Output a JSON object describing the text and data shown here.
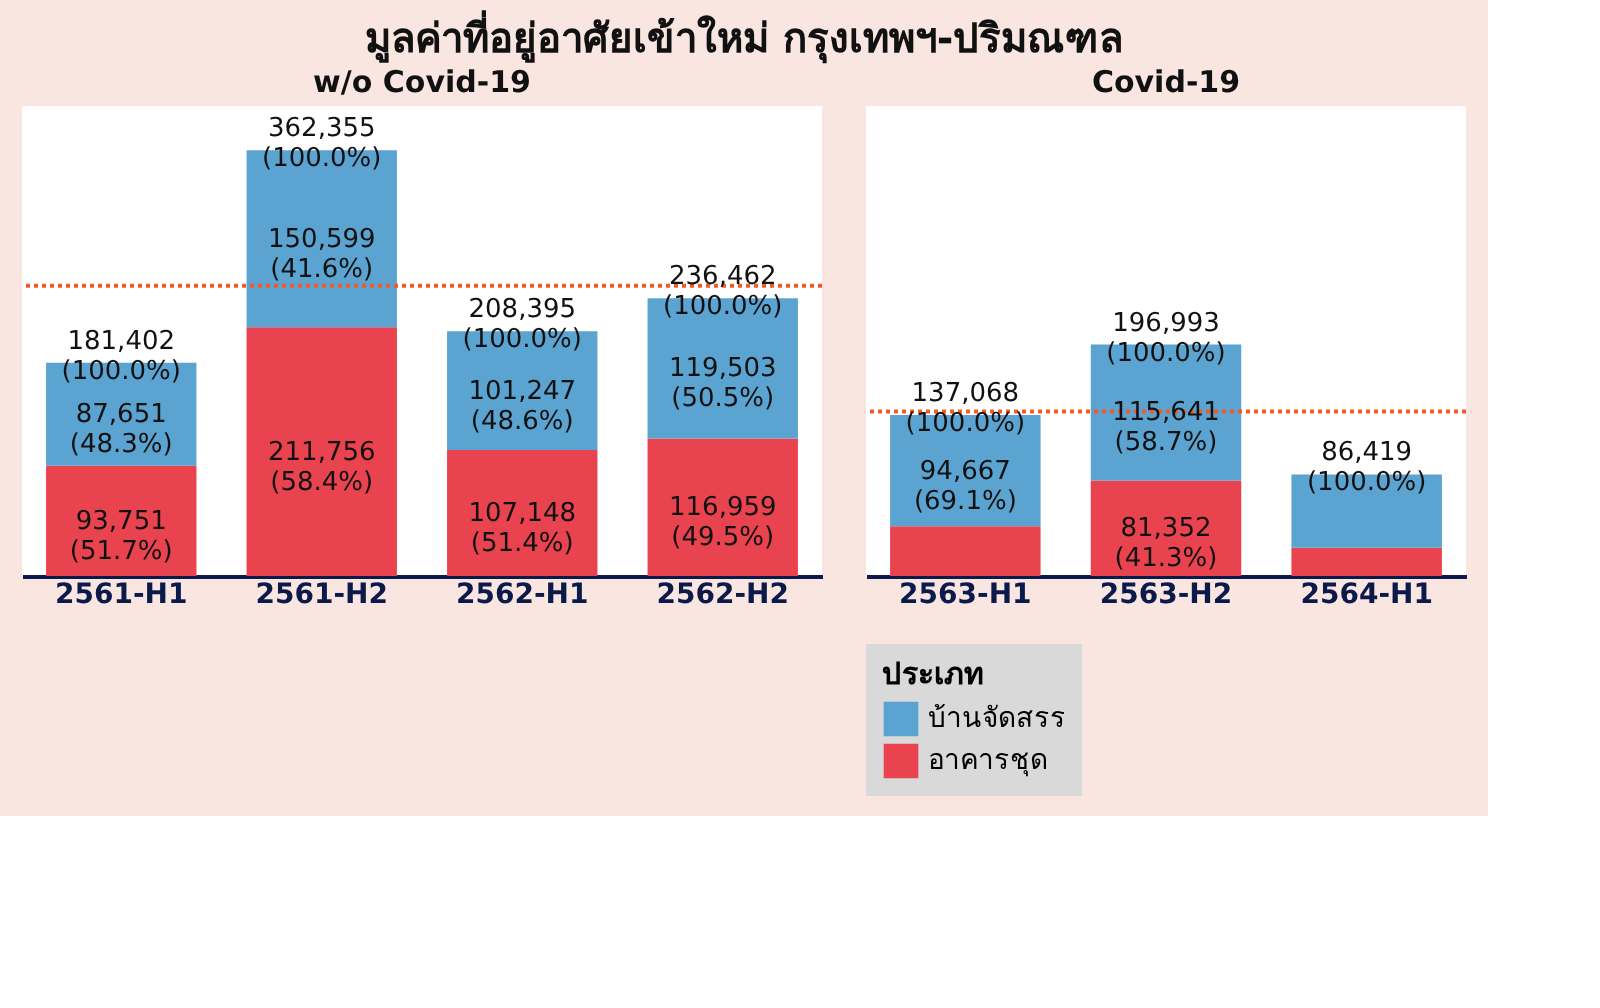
{
  "chart_data": [
    {
      "type": "bar",
      "stacked": true,
      "title": "มูลค่าที่อยู่อาศัยเข้าใหม่ กรุงเทพฯ-ปริมณฑล",
      "subtitle": "w/o Covid-19",
      "categories": [
        "2561-H1",
        "2561-H2",
        "2562-H1",
        "2562-H2"
      ],
      "ylim": [
        0,
        400000
      ],
      "tick_labels": "x",
      "grid": false,
      "legend": false,
      "series": [
        {
          "color": "#e8434f",
          "values": [
            93751,
            211756,
            107148,
            116959
          ],
          "value_labels": [
            "93,751 (51.7%)",
            "211,756 (58.4%)",
            "107,148 (51.4%)",
            "116,959 (49.5%)"
          ]
        },
        {
          "color": "#5ba3d0",
          "values": [
            87651,
            150599,
            101247,
            119503
          ],
          "value_labels": [
            "87,651 (48.3%)",
            "150,599 (41.6%)",
            "101,247 (48.6%)",
            "119,503 (50.5%)"
          ]
        }
      ],
      "totals": [
        "181,402 (100.0%)",
        "362,355 (100.0%)",
        "208,395 (100.0%)",
        "236,462 (100.0%)"
      ],
      "ref_lines": [
        {
          "axis": "y",
          "value": 247000,
          "color": "#f05a28",
          "line_style": "dotted"
        }
      ]
    },
    {
      "type": "bar",
      "stacked": true,
      "subtitle": "Covid-19",
      "categories": [
        "2563-H1",
        "2563-H2",
        "2564-H1"
      ],
      "ylim": [
        0,
        400000
      ],
      "tick_labels": "x",
      "grid": false,
      "legend": "bottom",
      "legend_title": "ประเภท",
      "series": [
        {
          "name": "อาคารชุด",
          "color": "#e8434f",
          "values": [
            42401,
            81352,
            24000
          ],
          "value_labels": [
            null,
            "81,352 (41.3%)",
            null
          ]
        },
        {
          "name": "บ้านจัดสรร",
          "color": "#5ba3d0",
          "values": [
            94667,
            115641,
            62400
          ],
          "value_labels": [
            "94,667 (69.1%)",
            "115,641 (58.7%)",
            null
          ]
        }
      ],
      "totals": [
        "137,068 (100.0%)",
        "196,993 (100.0%)",
        "86,419 (100.0%)"
      ],
      "ref_lines": [
        {
          "axis": "y",
          "value": 140000,
          "color": "#f05a28",
          "line_style": "dotted"
        }
      ]
    }
  ]
}
